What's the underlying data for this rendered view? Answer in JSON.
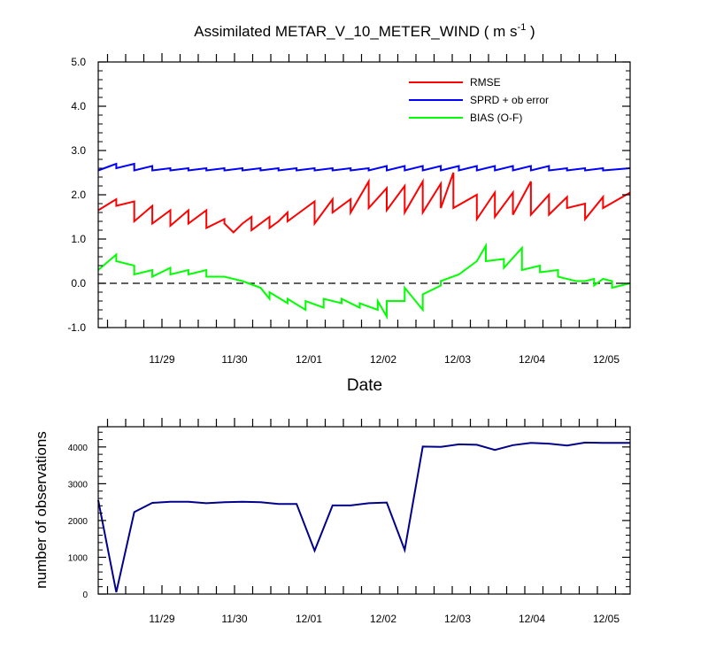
{
  "chart_data": [
    {
      "type": "line",
      "title": "Assimilated METAR_V_10_METER_WIND ( m s",
      "title_unit_superscript": "-1",
      "title_close": " )",
      "xlabel": "Date",
      "ylabel": "",
      "x_tick_labels": [
        "11/29",
        "11/30",
        "12/01",
        "12/02",
        "12/03",
        "12/04",
        "12/05"
      ],
      "y_tick_labels": [
        "5.0",
        "4.0",
        "3.0",
        "2.0",
        "1.0",
        "0.0",
        "-1.0"
      ],
      "ylim": [
        -1.0,
        5.0
      ],
      "x_domain": [
        0,
        29.5
      ],
      "legend_position": "top-right",
      "zero_line": {
        "y": 0.0,
        "style": "dashed"
      },
      "series": [
        {
          "name": "RMSE",
          "color": "#ff0000",
          "points": [
            [
              0,
              1.65
            ],
            [
              1,
              1.9
            ],
            [
              1,
              1.75
            ],
            [
              2,
              1.85
            ],
            [
              2,
              1.4
            ],
            [
              3,
              1.75
            ],
            [
              3,
              1.35
            ],
            [
              4,
              1.65
            ],
            [
              4,
              1.3
            ],
            [
              5,
              1.65
            ],
            [
              5,
              1.35
            ],
            [
              6,
              1.65
            ],
            [
              6,
              1.25
            ],
            [
              7,
              1.45
            ],
            [
              7,
              1.35
            ],
            [
              7.5,
              1.15
            ],
            [
              8,
              1.35
            ],
            [
              8.5,
              1.5
            ],
            [
              8.5,
              1.2
            ],
            [
              9.5,
              1.5
            ],
            [
              9.5,
              1.25
            ],
            [
              10,
              1.4
            ],
            [
              10.5,
              1.6
            ],
            [
              10.5,
              1.4
            ],
            [
              11,
              1.55
            ],
            [
              12,
              1.85
            ],
            [
              12,
              1.35
            ],
            [
              13,
              1.9
            ],
            [
              13,
              1.6
            ],
            [
              14,
              1.9
            ],
            [
              14,
              1.6
            ],
            [
              15,
              2.3
            ],
            [
              15,
              1.7
            ],
            [
              16,
              2.15
            ],
            [
              16,
              1.65
            ],
            [
              17,
              2.2
            ],
            [
              17,
              1.6
            ],
            [
              18,
              2.3
            ],
            [
              18,
              1.6
            ],
            [
              19,
              2.25
            ],
            [
              19,
              1.7
            ],
            [
              19.7,
              2.5
            ],
            [
              19.7,
              1.7
            ],
            [
              21,
              2.0
            ],
            [
              21,
              1.45
            ],
            [
              22,
              2.05
            ],
            [
              22,
              1.5
            ],
            [
              23,
              2.05
            ],
            [
              23,
              1.55
            ],
            [
              24,
              2.3
            ],
            [
              24,
              1.55
            ],
            [
              25,
              2.0
            ],
            [
              25,
              1.55
            ],
            [
              26,
              1.95
            ],
            [
              26,
              1.7
            ],
            [
              27,
              1.8
            ],
            [
              27,
              1.45
            ],
            [
              28,
              1.95
            ],
            [
              28,
              1.7
            ],
            [
              29.5,
              2.05
            ]
          ]
        },
        {
          "name": "SPRD + ob error",
          "color": "#0000ff",
          "points": [
            [
              0,
              2.55
            ],
            [
              1,
              2.7
            ],
            [
              1,
              2.6
            ],
            [
              2,
              2.7
            ],
            [
              2,
              2.55
            ],
            [
              3,
              2.65
            ],
            [
              3,
              2.55
            ],
            [
              4,
              2.6
            ],
            [
              4,
              2.55
            ],
            [
              5,
              2.6
            ],
            [
              5,
              2.55
            ],
            [
              6,
              2.6
            ],
            [
              6,
              2.55
            ],
            [
              7,
              2.6
            ],
            [
              7,
              2.55
            ],
            [
              8,
              2.6
            ],
            [
              8,
              2.55
            ],
            [
              9,
              2.6
            ],
            [
              9,
              2.55
            ],
            [
              10,
              2.6
            ],
            [
              10,
              2.55
            ],
            [
              11,
              2.6
            ],
            [
              11,
              2.55
            ],
            [
              12,
              2.6
            ],
            [
              12,
              2.55
            ],
            [
              13,
              2.6
            ],
            [
              13,
              2.55
            ],
            [
              14,
              2.6
            ],
            [
              14,
              2.55
            ],
            [
              15,
              2.6
            ],
            [
              15,
              2.55
            ],
            [
              16,
              2.65
            ],
            [
              16,
              2.55
            ],
            [
              17,
              2.65
            ],
            [
              17,
              2.55
            ],
            [
              18,
              2.65
            ],
            [
              18,
              2.55
            ],
            [
              19,
              2.65
            ],
            [
              19,
              2.55
            ],
            [
              20,
              2.65
            ],
            [
              20,
              2.55
            ],
            [
              21,
              2.65
            ],
            [
              21,
              2.55
            ],
            [
              22,
              2.65
            ],
            [
              22,
              2.55
            ],
            [
              23,
              2.65
            ],
            [
              23,
              2.55
            ],
            [
              24,
              2.65
            ],
            [
              24,
              2.55
            ],
            [
              25,
              2.65
            ],
            [
              25,
              2.55
            ],
            [
              26,
              2.6
            ],
            [
              26,
              2.55
            ],
            [
              27,
              2.6
            ],
            [
              27,
              2.55
            ],
            [
              28,
              2.6
            ],
            [
              28,
              2.55
            ],
            [
              29.5,
              2.6
            ]
          ]
        },
        {
          "name": "BIAS (O-F)",
          "color": "#00ff00",
          "points": [
            [
              0,
              0.3
            ],
            [
              1,
              0.65
            ],
            [
              1,
              0.5
            ],
            [
              2,
              0.4
            ],
            [
              2,
              0.2
            ],
            [
              3,
              0.3
            ],
            [
              3,
              0.15
            ],
            [
              4,
              0.35
            ],
            [
              4,
              0.2
            ],
            [
              5,
              0.3
            ],
            [
              5,
              0.2
            ],
            [
              6,
              0.3
            ],
            [
              6,
              0.15
            ],
            [
              7,
              0.15
            ],
            [
              7,
              0.15
            ],
            [
              8,
              0.05
            ],
            [
              8,
              0.05
            ],
            [
              9,
              -0.1
            ],
            [
              9.5,
              -0.35
            ],
            [
              9.5,
              -0.2
            ],
            [
              10.5,
              -0.45
            ],
            [
              10.5,
              -0.35
            ],
            [
              11.5,
              -0.6
            ],
            [
              11.5,
              -0.4
            ],
            [
              12.5,
              -0.55
            ],
            [
              12.5,
              -0.35
            ],
            [
              13.5,
              -0.45
            ],
            [
              13.5,
              -0.35
            ],
            [
              14.5,
              -0.55
            ],
            [
              14.5,
              -0.45
            ],
            [
              15.5,
              -0.6
            ],
            [
              15.5,
              -0.4
            ],
            [
              16,
              -0.75
            ],
            [
              16,
              -0.4
            ],
            [
              17,
              -0.4
            ],
            [
              17,
              -0.1
            ],
            [
              18,
              -0.6
            ],
            [
              18,
              -0.25
            ],
            [
              19,
              -0.05
            ],
            [
              19,
              0.05
            ],
            [
              20,
              0.2
            ],
            [
              21,
              0.5
            ],
            [
              21.5,
              0.85
            ],
            [
              21.5,
              0.5
            ],
            [
              22.5,
              0.55
            ],
            [
              22.5,
              0.35
            ],
            [
              23.5,
              0.8
            ],
            [
              23.5,
              0.3
            ],
            [
              24.5,
              0.4
            ],
            [
              24.5,
              0.25
            ],
            [
              25.5,
              0.3
            ],
            [
              25.5,
              0.15
            ],
            [
              26.5,
              0.05
            ],
            [
              27,
              0.05
            ],
            [
              27.5,
              0.1
            ],
            [
              27.5,
              -0.05
            ],
            [
              28,
              0.1
            ],
            [
              28.5,
              0.05
            ],
            [
              28.5,
              -0.1
            ],
            [
              29.5,
              0.0
            ]
          ]
        }
      ]
    },
    {
      "type": "line",
      "title": "",
      "xlabel": "",
      "ylabel": "number of observations",
      "x_tick_labels": [
        "11/29",
        "11/30",
        "12/01",
        "12/02",
        "12/03",
        "12/04",
        "12/05"
      ],
      "y_tick_labels": [
        "4000",
        "3000",
        "2000",
        "1000",
        "0"
      ],
      "ylim": [
        0,
        4550
      ],
      "x_domain": [
        0,
        29.5
      ],
      "series": [
        {
          "color": "#00008b",
          "points": [
            [
              0,
              2550
            ],
            [
              1,
              50
            ],
            [
              2,
              2230
            ],
            [
              3,
              2480
            ],
            [
              4,
              2510
            ],
            [
              5,
              2510
            ],
            [
              6,
              2470
            ],
            [
              7,
              2500
            ],
            [
              8,
              2510
            ],
            [
              9,
              2500
            ],
            [
              10,
              2450
            ],
            [
              11,
              2450
            ],
            [
              12,
              1180
            ],
            [
              13,
              2410
            ],
            [
              14,
              2410
            ],
            [
              15,
              2470
            ],
            [
              16,
              2490
            ],
            [
              17,
              1200
            ],
            [
              18,
              4010
            ],
            [
              19,
              4000
            ],
            [
              20,
              4070
            ],
            [
              21,
              4060
            ],
            [
              22,
              3920
            ],
            [
              23,
              4050
            ],
            [
              24,
              4110
            ],
            [
              25,
              4090
            ],
            [
              26,
              4040
            ],
            [
              27,
              4120
            ],
            [
              28,
              4110
            ],
            [
              29.5,
              4110
            ]
          ]
        }
      ]
    }
  ]
}
